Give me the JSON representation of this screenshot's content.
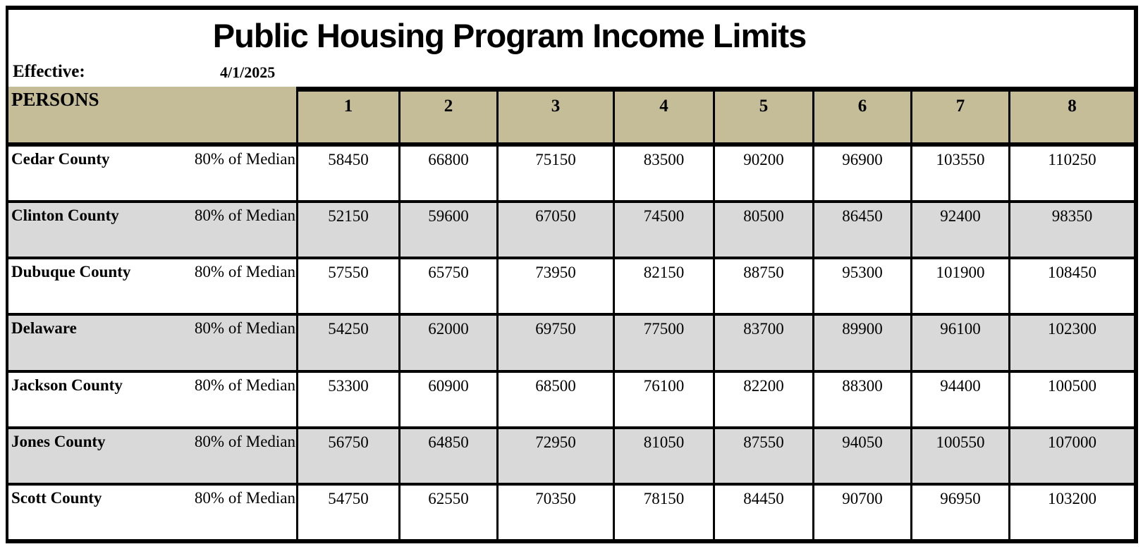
{
  "title": "Public Housing Program Income Limits",
  "effective": {
    "label": "Effective:",
    "date": "4/1/2025"
  },
  "table": {
    "persons_label": "PERSONS",
    "columns": [
      "1",
      "2",
      "3",
      "4",
      "5",
      "6",
      "7",
      "8"
    ],
    "rows": [
      {
        "county": "Cedar County",
        "measure": "80% of Median",
        "values": [
          "58450",
          "66800",
          "75150",
          "83500",
          "90200",
          "96900",
          "103550",
          "110250"
        ]
      },
      {
        "county": "Clinton County",
        "measure": "80% of Median",
        "values": [
          "52150",
          "59600",
          "67050",
          "74500",
          "80500",
          "86450",
          "92400",
          "98350"
        ]
      },
      {
        "county": "Dubuque County",
        "measure": "80% of Median",
        "values": [
          "57550",
          "65750",
          "73950",
          "82150",
          "88750",
          "95300",
          "101900",
          "108450"
        ]
      },
      {
        "county": "Delaware",
        "measure": "80% of Median",
        "values": [
          "54250",
          "62000",
          "69750",
          "77500",
          "83700",
          "89900",
          "96100",
          "102300"
        ]
      },
      {
        "county": "Jackson County",
        "measure": "80% of Median",
        "values": [
          "53300",
          "60900",
          "68500",
          "76100",
          "82200",
          "88300",
          "94400",
          "100500"
        ]
      },
      {
        "county": "Jones County",
        "measure": "80% of Median",
        "values": [
          "56750",
          "64850",
          "72950",
          "81050",
          "87550",
          "94050",
          "100550",
          "107000"
        ]
      },
      {
        "county": "Scott County",
        "measure": "80% of Median",
        "values": [
          "54750",
          "62550",
          "70350",
          "78150",
          "84450",
          "90700",
          "96950",
          "103200"
        ]
      }
    ]
  },
  "colors": {
    "header_bg": "#C4BD97",
    "alt_row_bg": "#D9D9D9",
    "border": "#000000"
  }
}
